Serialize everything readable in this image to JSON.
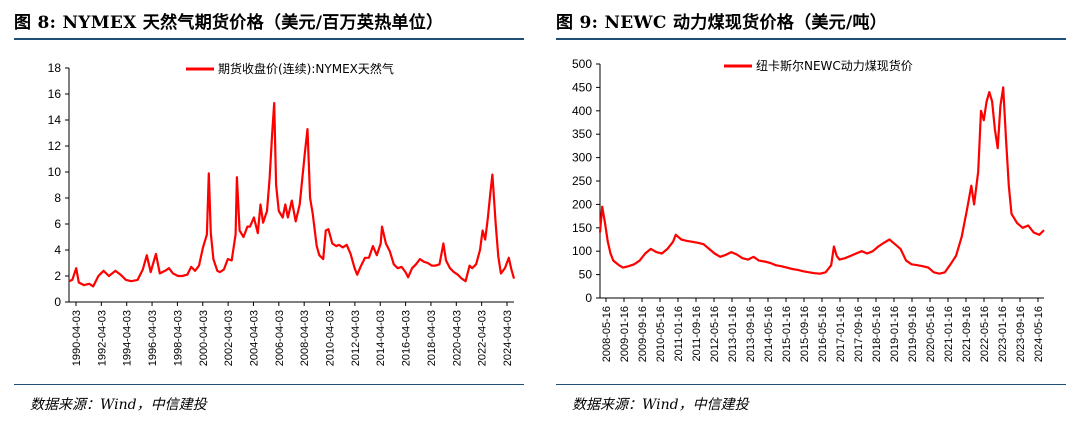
{
  "left": {
    "title": "图 8: NYMEX 天然气期货价格（美元/百万英热单位）",
    "source": "数据来源：Wind，中信建投",
    "chart_data": {
      "type": "line",
      "legend": "期货收盘价(连续):NYMEX天然气",
      "legend_position": "top-right",
      "color": "#ff0000",
      "ylim": [
        0,
        18
      ],
      "yticks": [
        "0",
        "2",
        "4",
        "6",
        "8",
        "10",
        "12",
        "14",
        "16",
        "18"
      ],
      "xticks": [
        "1990-04-03",
        "1992-04-03",
        "1994-04-03",
        "1996-04-03",
        "1998-04-03",
        "2000-04-03",
        "2002-04-03",
        "2004-04-03",
        "2006-04-03",
        "2008-04-03",
        "2010-04-03",
        "2012-04-03",
        "2014-04-03",
        "2016-04-03",
        "2018-04-03",
        "2020-04-03",
        "2022-04-03",
        "2024-04-03"
      ],
      "x_range": [
        1990.25,
        2024.3
      ],
      "series": [
        {
          "x": [
            1990.25,
            1990.5,
            1990.8,
            1991.0,
            1991.4,
            1991.8,
            1992.1,
            1992.5,
            1992.9,
            1993.3,
            1993.8,
            1994.2,
            1994.6,
            1995.0,
            1995.5,
            1995.9,
            1996.2,
            1996.5,
            1996.9,
            1997.2,
            1997.6,
            1997.9,
            1998.2,
            1998.6,
            1998.9,
            1999.3,
            1999.6,
            1999.9,
            2000.2,
            2000.5,
            2000.8,
            2000.95,
            2001.1,
            2001.3,
            2001.6,
            2001.8,
            2002.1,
            2002.4,
            2002.7,
            2003.0,
            2003.1,
            2003.3,
            2003.6,
            2003.9,
            2004.1,
            2004.4,
            2004.7,
            2004.9,
            2005.1,
            2005.4,
            2005.6,
            2005.8,
            2005.95,
            2006.1,
            2006.3,
            2006.6,
            2006.8,
            2007.0,
            2007.3,
            2007.6,
            2007.9,
            2008.1,
            2008.3,
            2008.5,
            2008.7,
            2008.9,
            2009.2,
            2009.4,
            2009.7,
            2009.9,
            2010.1,
            2010.4,
            2010.7,
            2010.9,
            2011.2,
            2011.5,
            2011.8,
            2012.1,
            2012.3,
            2012.6,
            2012.9,
            2013.2,
            2013.5,
            2013.8,
            2014.1,
            2014.2,
            2014.5,
            2014.8,
            2015.1,
            2015.4,
            2015.7,
            2016.0,
            2016.2,
            2016.5,
            2016.8,
            2017.1,
            2017.4,
            2017.7,
            2018.0,
            2018.3,
            2018.6,
            2018.9,
            2019.1,
            2019.4,
            2019.7,
            2020.0,
            2020.3,
            2020.6,
            2020.9,
            2021.1,
            2021.4,
            2021.7,
            2021.9,
            2022.1,
            2022.3,
            2022.5,
            2022.65,
            2022.9,
            2023.1,
            2023.3,
            2023.6,
            2023.9,
            2024.1,
            2024.3
          ],
          "values": [
            1.6,
            1.7,
            2.6,
            1.5,
            1.3,
            1.4,
            1.2,
            2.0,
            2.4,
            2.0,
            2.4,
            2.1,
            1.7,
            1.6,
            1.7,
            2.5,
            3.6,
            2.3,
            3.7,
            2.2,
            2.4,
            2.6,
            2.2,
            2.0,
            2.0,
            2.1,
            2.7,
            2.4,
            2.8,
            4.2,
            5.2,
            9.9,
            5.3,
            3.3,
            2.4,
            2.3,
            2.5,
            3.3,
            3.2,
            5.2,
            9.6,
            5.5,
            5.0,
            5.8,
            5.8,
            6.5,
            5.3,
            7.5,
            6.1,
            7.0,
            9.5,
            13.0,
            15.3,
            9.0,
            7.0,
            6.5,
            7.5,
            6.5,
            7.8,
            6.2,
            7.5,
            9.5,
            11.5,
            13.3,
            8.0,
            6.8,
            4.3,
            3.6,
            3.3,
            5.5,
            5.6,
            4.5,
            4.3,
            4.4,
            4.2,
            4.4,
            3.7,
            2.6,
            2.1,
            2.8,
            3.4,
            3.4,
            4.3,
            3.6,
            4.5,
            5.8,
            4.5,
            3.9,
            2.9,
            2.6,
            2.7,
            2.3,
            1.9,
            2.6,
            2.9,
            3.3,
            3.1,
            3.0,
            2.8,
            2.8,
            2.9,
            4.5,
            3.2,
            2.6,
            2.3,
            2.1,
            1.8,
            1.6,
            2.8,
            2.6,
            2.9,
            4.0,
            5.5,
            4.8,
            6.5,
            8.5,
            9.8,
            6.0,
            3.5,
            2.2,
            2.6,
            3.4,
            2.5,
            1.8
          ]
        }
      ]
    }
  },
  "right": {
    "title": "图 9: NEWC 动力煤现货价格（美元/吨）",
    "source": "数据来源：Wind，中信建投",
    "chart_data": {
      "type": "line",
      "legend": "纽卡斯尔NEWC动力煤现货价",
      "legend_position": "top-center",
      "color": "#ff0000",
      "ylim": [
        0,
        500
      ],
      "yticks": [
        "0",
        "50",
        "100",
        "150",
        "200",
        "250",
        "300",
        "350",
        "400",
        "450",
        "500"
      ],
      "xticks": [
        "2008-05-16",
        "2009-01-16",
        "2009-09-16",
        "2010-05-16",
        "2011-01-16",
        "2011-09-16",
        "2012-05-16",
        "2013-01-16",
        "2013-09-16",
        "2014-05-16",
        "2015-01-16",
        "2015-09-16",
        "2016-05-16",
        "2017-01-16",
        "2017-09-16",
        "2018-05-16",
        "2019-01-16",
        "2019-09-16",
        "2020-05-16",
        "2021-01-16",
        "2021-09-16",
        "2022-05-16",
        "2023-01-16",
        "2023-09-16",
        "2024-05-16"
      ],
      "x_range": [
        2008.37,
        2024.37
      ],
      "series": [
        {
          "x": [
            2008.37,
            2008.45,
            2008.55,
            2008.65,
            2008.75,
            2008.85,
            2008.95,
            2009.05,
            2009.2,
            2009.4,
            2009.6,
            2009.8,
            2010.0,
            2010.2,
            2010.4,
            2010.6,
            2010.8,
            2011.0,
            2011.1,
            2011.3,
            2011.5,
            2011.7,
            2011.9,
            2012.1,
            2012.3,
            2012.5,
            2012.7,
            2012.9,
            2013.1,
            2013.3,
            2013.5,
            2013.7,
            2013.9,
            2014.1,
            2014.3,
            2014.5,
            2014.7,
            2014.9,
            2015.1,
            2015.3,
            2015.5,
            2015.7,
            2015.9,
            2016.1,
            2016.3,
            2016.5,
            2016.7,
            2016.8,
            2016.9,
            2017.0,
            2017.2,
            2017.4,
            2017.6,
            2017.8,
            2018.0,
            2018.2,
            2018.4,
            2018.6,
            2018.8,
            2019.0,
            2019.2,
            2019.4,
            2019.6,
            2019.8,
            2020.0,
            2020.2,
            2020.4,
            2020.6,
            2020.8,
            2021.0,
            2021.2,
            2021.4,
            2021.6,
            2021.75,
            2021.85,
            2022.0,
            2022.1,
            2022.2,
            2022.3,
            2022.4,
            2022.5,
            2022.6,
            2022.7,
            2022.8,
            2022.9,
            2023.0,
            2023.1,
            2023.2,
            2023.4,
            2023.6,
            2023.8,
            2024.0,
            2024.2,
            2024.37
          ],
          "values": [
            140,
            195,
            160,
            120,
            95,
            80,
            75,
            70,
            65,
            68,
            72,
            80,
            95,
            105,
            98,
            95,
            105,
            120,
            135,
            125,
            122,
            120,
            118,
            115,
            105,
            95,
            88,
            92,
            98,
            93,
            85,
            82,
            88,
            80,
            78,
            75,
            70,
            68,
            65,
            62,
            60,
            57,
            55,
            53,
            52,
            55,
            70,
            110,
            90,
            82,
            85,
            90,
            95,
            100,
            95,
            100,
            110,
            118,
            125,
            115,
            105,
            80,
            72,
            70,
            68,
            65,
            55,
            52,
            55,
            72,
            90,
            130,
            190,
            240,
            200,
            270,
            400,
            380,
            420,
            440,
            420,
            360,
            320,
            410,
            450,
            340,
            240,
            180,
            160,
            150,
            155,
            140,
            135,
            145
          ]
        }
      ]
    }
  }
}
